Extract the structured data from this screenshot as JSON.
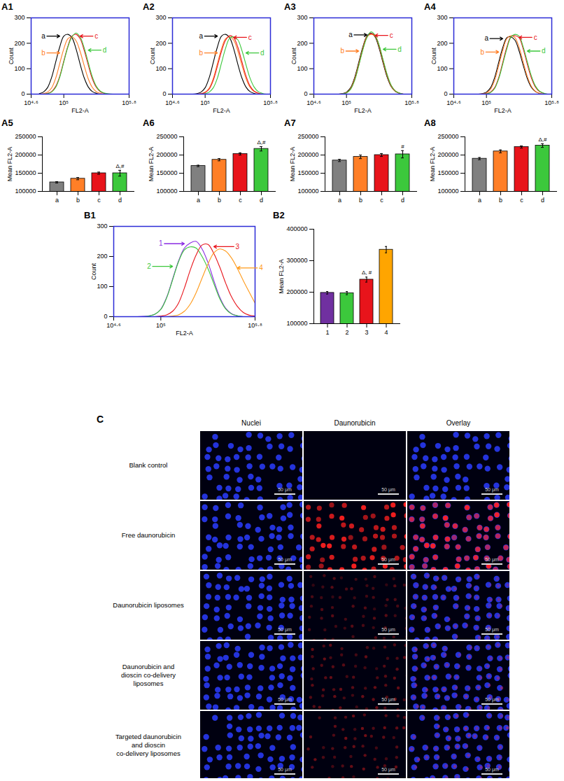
{
  "chart_data": [
    {
      "type": "line",
      "title": "A1",
      "xlabel": "FL2-A",
      "ylabel": "Count",
      "xlim": [
        4.6,
        5.8
      ],
      "xticks": [
        {
          "value": 4.6,
          "label": "10⁴·⁶"
        },
        {
          "value": 5,
          "label": "10⁵"
        },
        {
          "value": 5.8,
          "label": "10⁵·⁸"
        }
      ],
      "ylim": [
        0,
        300
      ],
      "yticks": [
        0,
        100,
        200,
        300
      ],
      "x": [
        4.7,
        4.75,
        4.8,
        4.85,
        4.9,
        4.95,
        5.0,
        5.05,
        5.1,
        5.15,
        5.2,
        5.25,
        5.3,
        5.35,
        5.4,
        5.45,
        5.5,
        5.55,
        5.6,
        5.65,
        5.7,
        5.75,
        5.8
      ],
      "series": [
        {
          "name": "a",
          "color": "#000000",
          "values": [
            2,
            8,
            25,
            65,
            125,
            185,
            228,
            235,
            222,
            178,
            118,
            64,
            28,
            10,
            3,
            0,
            0,
            0,
            0,
            0,
            0,
            0,
            0
          ]
        },
        {
          "name": "b",
          "color": "#ff7f27",
          "values": [
            0,
            2,
            8,
            24,
            62,
            120,
            178,
            218,
            225,
            210,
            168,
            112,
            60,
            26,
            9,
            3,
            0,
            0,
            0,
            0,
            0,
            0,
            0
          ]
        },
        {
          "name": "c",
          "color": "#e8141b",
          "values": [
            0,
            0,
            3,
            10,
            30,
            70,
            130,
            188,
            228,
            235,
            218,
            172,
            114,
            60,
            26,
            9,
            3,
            0,
            0,
            0,
            0,
            0,
            0
          ]
        },
        {
          "name": "d",
          "color": "#3cc83c",
          "values": [
            0,
            0,
            2,
            8,
            26,
            66,
            126,
            185,
            225,
            240,
            225,
            182,
            124,
            68,
            30,
            11,
            4,
            1,
            0,
            0,
            0,
            0,
            0
          ]
        }
      ]
    },
    {
      "type": "line",
      "title": "A2",
      "xlabel": "FL2-A",
      "ylabel": "Count",
      "xlim": [
        4.6,
        5.8
      ],
      "xticks": [
        {
          "value": 4.6,
          "label": "10⁴·⁶"
        },
        {
          "value": 5,
          "label": "10⁵"
        },
        {
          "value": 5.8,
          "label": "10⁵·⁸"
        }
      ],
      "ylim": [
        0,
        300
      ],
      "yticks": [
        0,
        100,
        200,
        300
      ],
      "x": [
        4.7,
        4.75,
        4.8,
        4.85,
        4.9,
        4.95,
        5.0,
        5.05,
        5.1,
        5.15,
        5.2,
        5.25,
        5.3,
        5.35,
        5.4,
        5.45,
        5.5,
        5.55,
        5.6,
        5.65,
        5.7,
        5.75,
        5.8
      ],
      "series": [
        {
          "name": "a",
          "color": "#000000",
          "values": [
            0,
            0,
            0,
            0,
            2,
            8,
            25,
            65,
            125,
            185,
            228,
            235,
            222,
            178,
            118,
            64,
            28,
            10,
            3,
            0,
            0,
            0,
            0
          ]
        },
        {
          "name": "b",
          "color": "#ff7f27",
          "values": [
            0,
            0,
            0,
            0,
            0,
            2,
            8,
            24,
            62,
            120,
            178,
            218,
            225,
            212,
            170,
            114,
            62,
            27,
            10,
            3,
            0,
            0,
            0
          ]
        },
        {
          "name": "c",
          "color": "#e8141b",
          "values": [
            0,
            0,
            0,
            0,
            0,
            1,
            6,
            20,
            55,
            110,
            168,
            212,
            230,
            222,
            185,
            128,
            72,
            32,
            12,
            4,
            0,
            0,
            0
          ]
        },
        {
          "name": "d",
          "color": "#3cc83c",
          "values": [
            0,
            0,
            0,
            0,
            0,
            0,
            2,
            8,
            25,
            63,
            122,
            180,
            220,
            225,
            214,
            172,
            116,
            63,
            28,
            10,
            3,
            0,
            0
          ]
        }
      ]
    },
    {
      "type": "line",
      "title": "A3",
      "xlabel": "FL2-A",
      "ylabel": "Count",
      "xlim": [
        4.6,
        5.8
      ],
      "xticks": [
        {
          "value": 4.6,
          "label": "10⁴·⁶"
        },
        {
          "value": 5,
          "label": "10⁵"
        },
        {
          "value": 5.8,
          "label": "10⁵·⁸"
        }
      ],
      "ylim": [
        0,
        300
      ],
      "yticks": [
        0,
        100,
        200,
        300
      ],
      "x": [
        4.7,
        4.75,
        4.8,
        4.85,
        4.9,
        4.95,
        5.0,
        5.05,
        5.1,
        5.15,
        5.2,
        5.25,
        5.3,
        5.35,
        5.4,
        5.45,
        5.5,
        5.55,
        5.6,
        5.65,
        5.7,
        5.75,
        5.8
      ],
      "series": [
        {
          "name": "a",
          "color": "#000000",
          "values": [
            0,
            0,
            0,
            0,
            0,
            2,
            8,
            25,
            65,
            125,
            185,
            228,
            240,
            225,
            180,
            120,
            65,
            28,
            10,
            3,
            0,
            0,
            0
          ]
        },
        {
          "name": "b",
          "color": "#ff7f27",
          "values": [
            0,
            0,
            0,
            0,
            0,
            1,
            6,
            22,
            60,
            118,
            180,
            226,
            235,
            228,
            186,
            126,
            70,
            30,
            11,
            3,
            0,
            0,
            0
          ]
        },
        {
          "name": "c",
          "color": "#e8141b",
          "values": [
            0,
            0,
            0,
            0,
            0,
            1,
            5,
            20,
            56,
            114,
            176,
            224,
            238,
            230,
            190,
            130,
            73,
            32,
            12,
            4,
            0,
            0,
            0
          ]
        },
        {
          "name": "d",
          "color": "#3cc83c",
          "values": [
            0,
            0,
            0,
            0,
            0,
            1,
            5,
            19,
            54,
            112,
            174,
            222,
            245,
            232,
            192,
            133,
            75,
            33,
            12,
            4,
            0,
            0,
            0
          ]
        }
      ]
    },
    {
      "type": "line",
      "title": "A4",
      "xlabel": "FL2-A",
      "ylabel": "Count",
      "xlim": [
        4.6,
        5.8
      ],
      "xticks": [
        {
          "value": 4.6,
          "label": "10⁴·⁶"
        },
        {
          "value": 5,
          "label": "10⁵"
        },
        {
          "value": 5.8,
          "label": "10⁵·⁸"
        }
      ],
      "ylim": [
        0,
        300
      ],
      "yticks": [
        0,
        100,
        200,
        300
      ],
      "x": [
        4.7,
        4.75,
        4.8,
        4.85,
        4.9,
        4.95,
        5.0,
        5.05,
        5.1,
        5.15,
        5.2,
        5.25,
        5.3,
        5.35,
        5.4,
        5.45,
        5.5,
        5.55,
        5.6,
        5.65,
        5.7,
        5.75,
        5.8
      ],
      "series": [
        {
          "name": "a",
          "color": "#000000",
          "values": [
            0,
            0,
            0,
            0,
            0,
            2,
            8,
            25,
            65,
            125,
            183,
            222,
            225,
            212,
            170,
            114,
            62,
            27,
            10,
            3,
            0,
            0,
            0
          ]
        },
        {
          "name": "b",
          "color": "#ff7f27",
          "values": [
            0,
            0,
            0,
            0,
            0,
            1,
            5,
            19,
            54,
            112,
            172,
            218,
            230,
            222,
            184,
            126,
            70,
            31,
            11,
            3,
            0,
            0,
            0
          ]
        },
        {
          "name": "c",
          "color": "#e8141b",
          "values": [
            0,
            0,
            0,
            0,
            0,
            0,
            2,
            8,
            25,
            65,
            125,
            185,
            226,
            230,
            222,
            178,
            118,
            64,
            28,
            10,
            3,
            0,
            0
          ]
        },
        {
          "name": "d",
          "color": "#3cc83c",
          "values": [
            0,
            0,
            0,
            0,
            0,
            0,
            1,
            6,
            22,
            60,
            118,
            178,
            224,
            235,
            228,
            186,
            128,
            72,
            32,
            12,
            4,
            0,
            0
          ]
        }
      ]
    },
    {
      "type": "bar",
      "title": "A5",
      "ylabel": "Mean FL2-A",
      "categories": [
        "a",
        "b",
        "c",
        "d"
      ],
      "values": [
        125000,
        135000,
        150000,
        150000
      ],
      "errors": [
        2000,
        3000,
        3000,
        8000
      ],
      "colors": [
        "#808080",
        "#ff7f27",
        "#e8141b",
        "#3cc83c"
      ],
      "annotations": [
        {
          "category": "d",
          "text": "Δ,#"
        }
      ],
      "ylim": [
        100000,
        250000
      ],
      "yticks": [
        100000,
        150000,
        200000,
        250000
      ]
    },
    {
      "type": "bar",
      "title": "A6",
      "ylabel": "Mean FL2-A",
      "categories": [
        "a",
        "b",
        "c",
        "d"
      ],
      "values": [
        170000,
        187000,
        203000,
        217000
      ],
      "errors": [
        2000,
        3000,
        3000,
        6000
      ],
      "colors": [
        "#808080",
        "#ff7f27",
        "#e8141b",
        "#3cc83c"
      ],
      "annotations": [
        {
          "category": "d",
          "text": "Δ,#"
        }
      ],
      "ylim": [
        100000,
        250000
      ],
      "yticks": [
        100000,
        150000,
        200000,
        250000
      ]
    },
    {
      "type": "bar",
      "title": "A7",
      "ylabel": "Mean FL2-A",
      "categories": [
        "a",
        "b",
        "c",
        "d"
      ],
      "values": [
        185000,
        195000,
        200000,
        202000
      ],
      "errors": [
        3000,
        5000,
        4000,
        10000
      ],
      "colors": [
        "#808080",
        "#ff7f27",
        "#e8141b",
        "#3cc83c"
      ],
      "annotations": [
        {
          "category": "d",
          "text": "#"
        }
      ],
      "ylim": [
        100000,
        250000
      ],
      "yticks": [
        100000,
        150000,
        200000,
        250000
      ]
    },
    {
      "type": "bar",
      "title": "A8",
      "ylabel": "Mean FL2-A",
      "categories": [
        "a",
        "b",
        "c",
        "d"
      ],
      "values": [
        190000,
        210000,
        222000,
        226000
      ],
      "errors": [
        3000,
        4000,
        3000,
        5000
      ],
      "colors": [
        "#808080",
        "#ff7f27",
        "#e8141b",
        "#3cc83c"
      ],
      "annotations": [
        {
          "category": "d",
          "text": "Δ,#"
        }
      ],
      "ylim": [
        100000,
        250000
      ],
      "yticks": [
        100000,
        150000,
        200000,
        250000
      ]
    },
    {
      "type": "line",
      "title": "B1",
      "xlabel": "FL2-A",
      "ylabel": "Count",
      "xlim": [
        4.6,
        5.8
      ],
      "xticks": [
        {
          "value": 4.6,
          "label": "10⁴·⁶"
        },
        {
          "value": 5,
          "label": "10⁵"
        },
        {
          "value": 5.8,
          "label": "10⁵·⁸"
        }
      ],
      "ylim": [
        0,
        300
      ],
      "yticks": [
        0,
        100,
        200,
        300
      ],
      "x": [
        4.7,
        4.75,
        4.8,
        4.85,
        4.9,
        4.95,
        5.0,
        5.05,
        5.1,
        5.15,
        5.2,
        5.25,
        5.3,
        5.35,
        5.4,
        5.45,
        5.5,
        5.55,
        5.6,
        5.65,
        5.7,
        5.75,
        5.8
      ],
      "series": [
        {
          "name": "1",
          "color": "#8a2be2",
          "values": [
            0,
            0,
            0,
            1,
            3,
            8,
            25,
            65,
            125,
            185,
            228,
            245,
            250,
            225,
            180,
            120,
            65,
            28,
            10,
            3,
            0,
            0,
            0
          ]
        },
        {
          "name": "2",
          "color": "#3cc83c",
          "values": [
            0,
            0,
            0,
            0,
            2,
            8,
            24,
            63,
            122,
            182,
            222,
            232,
            228,
            200,
            160,
            110,
            60,
            26,
            9,
            3,
            0,
            0,
            0
          ]
        },
        {
          "name": "3",
          "color": "#e8141b",
          "values": [
            0,
            0,
            0,
            0,
            0,
            0,
            2,
            6,
            18,
            45,
            95,
            155,
            205,
            238,
            240,
            210,
            165,
            112,
            66,
            34,
            14,
            5,
            2
          ]
        },
        {
          "name": "4",
          "color": "#ff9a1a",
          "values": [
            0,
            0,
            0,
            0,
            0,
            0,
            0,
            0,
            2,
            6,
            18,
            42,
            80,
            128,
            175,
            212,
            225,
            218,
            195,
            160,
            120,
            82,
            45
          ]
        }
      ]
    },
    {
      "type": "bar",
      "title": "B2",
      "ylabel": "Mean FL2-A",
      "categories": [
        "1",
        "2",
        "3",
        "4"
      ],
      "values": [
        198000,
        197000,
        240000,
        335000
      ],
      "errors": [
        4000,
        5000,
        8000,
        10000
      ],
      "colors": [
        "#7030a0",
        "#3cc83c",
        "#e8141b",
        "#ffa500"
      ],
      "annotations": [
        {
          "category": "3",
          "text": "Δ, #"
        }
      ],
      "ylim": [
        100000,
        400000
      ],
      "yticks": [
        100000,
        200000,
        300000,
        400000
      ]
    }
  ],
  "panel_c": {
    "label": "C",
    "columns": [
      "Nuclei",
      "Daunorubicin",
      "Overlay"
    ],
    "rows": [
      "Blank control",
      "Free daunorubicin",
      "Daunorubicin liposomes",
      "Daunorubicin and dioscin co-delivery liposomes",
      "Targeted daunorubicin and dioscin co-delivery liposomes"
    ],
    "scale_bar": "50 μm"
  }
}
